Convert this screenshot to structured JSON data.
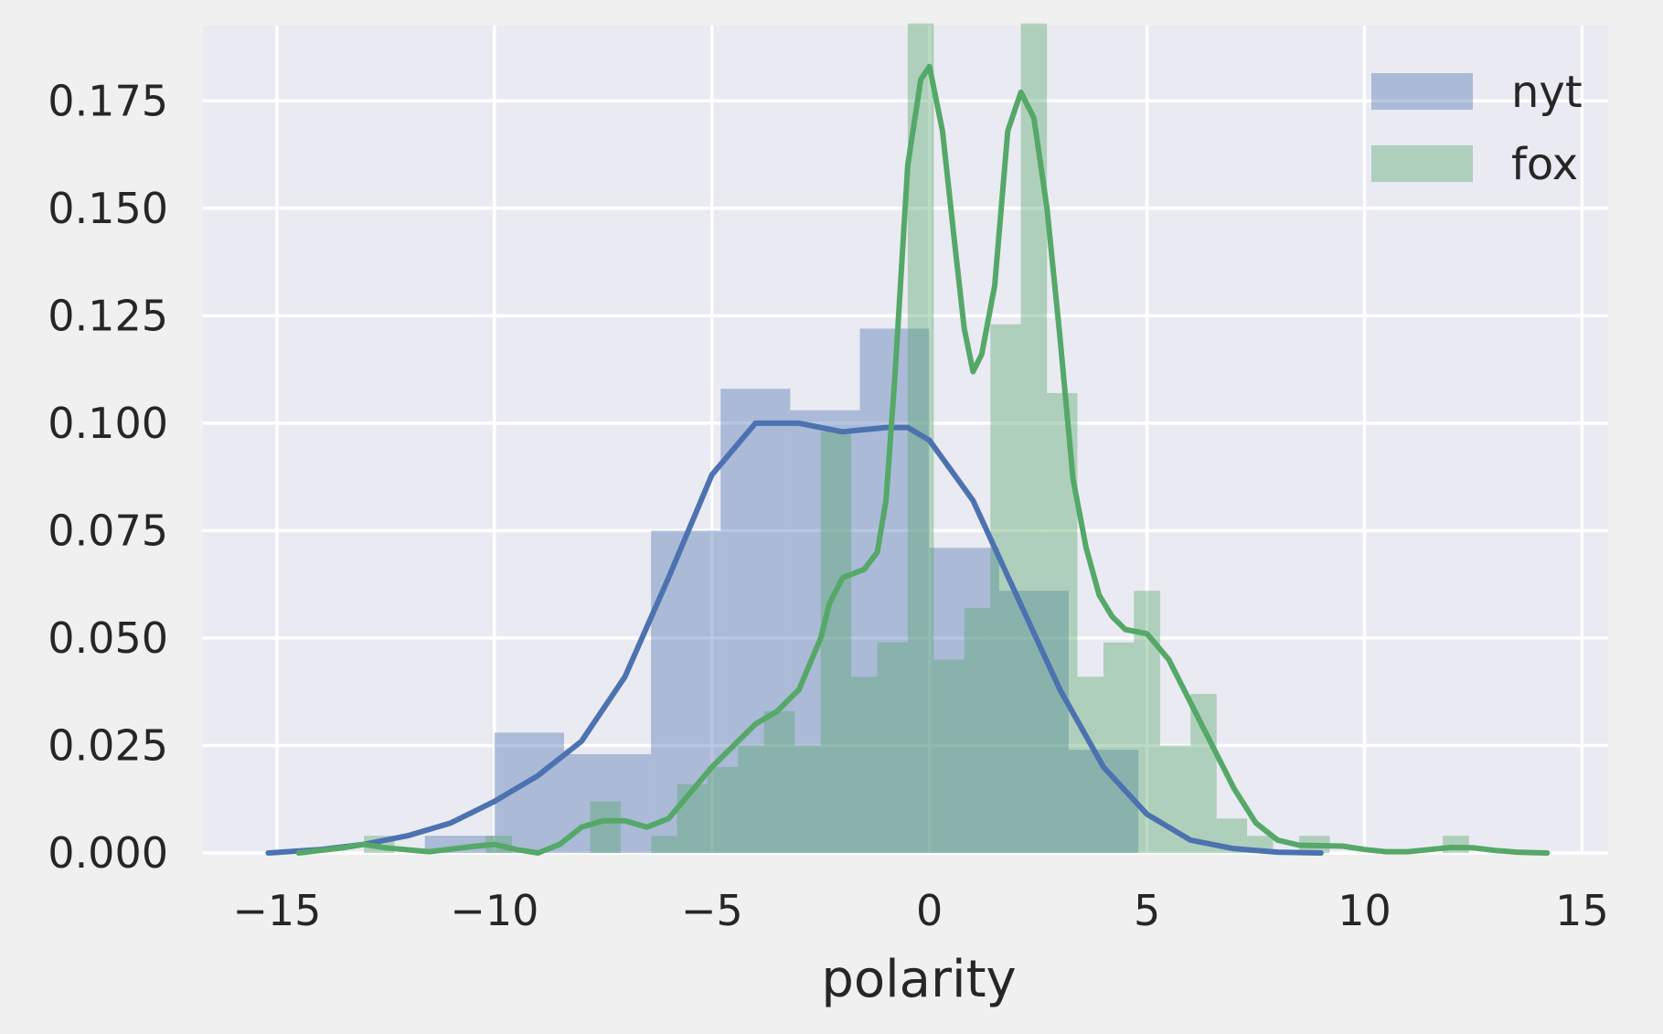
{
  "chart_data": {
    "type": "histogram-kde",
    "title": "",
    "xlabel": "polarity",
    "ylabel": "",
    "xlim": [
      -16.7,
      15.6
    ],
    "ylim": [
      0,
      0.1925
    ],
    "x_ticks": [
      -15,
      -10,
      -5,
      0,
      5,
      10,
      15
    ],
    "x_tick_labels": [
      "−15",
      "−10",
      "−5",
      "0",
      "5",
      "10",
      "15"
    ],
    "y_ticks": [
      0,
      0.025,
      0.05,
      0.075,
      0.1,
      0.125,
      0.15,
      0.175
    ],
    "y_tick_labels": [
      "0.000",
      "0.025",
      "0.050",
      "0.075",
      "0.100",
      "0.125",
      "0.150",
      "0.175"
    ],
    "grid": true,
    "legend_position": "top-right",
    "series": [
      {
        "name": "nyt",
        "color": "#4c72b0",
        "bins": [
          {
            "x0": -15.2,
            "x1": -13.6,
            "y": 0.0
          },
          {
            "x0": -11.6,
            "x1": -10.0,
            "y": 0.004
          },
          {
            "x0": -10.0,
            "x1": -8.4,
            "y": 0.028
          },
          {
            "x0": -8.4,
            "x1": -6.4,
            "y": 0.023
          },
          {
            "x0": -6.4,
            "x1": -4.8,
            "y": 0.075
          },
          {
            "x0": -4.8,
            "x1": -3.2,
            "y": 0.108
          },
          {
            "x0": -3.2,
            "x1": -1.6,
            "y": 0.103
          },
          {
            "x0": -1.6,
            "x1": 0.0,
            "y": 0.122
          },
          {
            "x0": 0.0,
            "x1": 1.6,
            "y": 0.071
          },
          {
            "x0": 1.6,
            "x1": 3.2,
            "y": 0.061
          },
          {
            "x0": 3.2,
            "x1": 4.8,
            "y": 0.024
          },
          {
            "x0": 8.0,
            "x1": 9.0,
            "y": 0.0
          }
        ],
        "kde": [
          [
            -15.2,
            0.0
          ],
          [
            -14,
            0.0008
          ],
          [
            -13,
            0.002
          ],
          [
            -12,
            0.004
          ],
          [
            -11,
            0.007
          ],
          [
            -10,
            0.012
          ],
          [
            -9,
            0.018
          ],
          [
            -8,
            0.026
          ],
          [
            -7,
            0.041
          ],
          [
            -6,
            0.064
          ],
          [
            -5,
            0.088
          ],
          [
            -4,
            0.1
          ],
          [
            -3,
            0.1
          ],
          [
            -2,
            0.098
          ],
          [
            -1,
            0.099
          ],
          [
            -0.5,
            0.099
          ],
          [
            0,
            0.096
          ],
          [
            1,
            0.082
          ],
          [
            2,
            0.06
          ],
          [
            3,
            0.038
          ],
          [
            4,
            0.02
          ],
          [
            5,
            0.009
          ],
          [
            6,
            0.003
          ],
          [
            7,
            0.001
          ],
          [
            8,
            0.0002
          ],
          [
            9,
            0.0
          ]
        ]
      },
      {
        "name": "fox",
        "color": "#55a868",
        "bins": [
          {
            "x0": -13.0,
            "x1": -12.3,
            "y": 0.004
          },
          {
            "x0": -10.2,
            "x1": -9.6,
            "y": 0.004
          },
          {
            "x0": -7.8,
            "x1": -7.1,
            "y": 0.012
          },
          {
            "x0": -6.4,
            "x1": -5.8,
            "y": 0.004
          },
          {
            "x0": -5.8,
            "x1": -5.1,
            "y": 0.016
          },
          {
            "x0": -5.1,
            "x1": -4.4,
            "y": 0.02
          },
          {
            "x0": -4.4,
            "x1": -3.8,
            "y": 0.025
          },
          {
            "x0": -3.8,
            "x1": -3.1,
            "y": 0.033
          },
          {
            "x0": -3.1,
            "x1": -2.5,
            "y": 0.025
          },
          {
            "x0": -2.5,
            "x1": -1.8,
            "y": 0.098
          },
          {
            "x0": -1.8,
            "x1": -1.2,
            "y": 0.041
          },
          {
            "x0": -1.2,
            "x1": -0.5,
            "y": 0.049
          },
          {
            "x0": -0.5,
            "x1": 0.1,
            "y": 0.193
          },
          {
            "x0": 0.1,
            "x1": 0.8,
            "y": 0.045
          },
          {
            "x0": 0.8,
            "x1": 1.4,
            "y": 0.057
          },
          {
            "x0": 1.4,
            "x1": 2.1,
            "y": 0.123
          },
          {
            "x0": 2.1,
            "x1": 2.7,
            "y": 0.193
          },
          {
            "x0": 2.7,
            "x1": 3.4,
            "y": 0.107
          },
          {
            "x0": 3.4,
            "x1": 4.0,
            "y": 0.041
          },
          {
            "x0": 4.0,
            "x1": 4.7,
            "y": 0.049
          },
          {
            "x0": 4.7,
            "x1": 5.3,
            "y": 0.061
          },
          {
            "x0": 5.3,
            "x1": 6.0,
            "y": 0.025
          },
          {
            "x0": 6.0,
            "x1": 6.6,
            "y": 0.037
          },
          {
            "x0": 6.6,
            "x1": 7.3,
            "y": 0.008
          },
          {
            "x0": 7.3,
            "x1": 7.9,
            "y": 0.004
          },
          {
            "x0": 8.5,
            "x1": 9.2,
            "y": 0.004
          },
          {
            "x0": 11.8,
            "x1": 12.4,
            "y": 0.004
          }
        ],
        "kde": [
          [
            -14.5,
            0.0
          ],
          [
            -13.5,
            0.0012
          ],
          [
            -13,
            0.002
          ],
          [
            -12.5,
            0.0012
          ],
          [
            -11.5,
            0.0003
          ],
          [
            -10.5,
            0.0015
          ],
          [
            -10,
            0.002
          ],
          [
            -9.5,
            0.0008
          ],
          [
            -9,
            0.0
          ],
          [
            -8.5,
            0.002
          ],
          [
            -8,
            0.006
          ],
          [
            -7.5,
            0.0075
          ],
          [
            -7,
            0.0075
          ],
          [
            -6.5,
            0.006
          ],
          [
            -6,
            0.008
          ],
          [
            -5.5,
            0.014
          ],
          [
            -5,
            0.02
          ],
          [
            -4.5,
            0.025
          ],
          [
            -4,
            0.03
          ],
          [
            -3.5,
            0.033
          ],
          [
            -3,
            0.038
          ],
          [
            -2.5,
            0.05
          ],
          [
            -2.3,
            0.058
          ],
          [
            -2,
            0.064
          ],
          [
            -1.5,
            0.066
          ],
          [
            -1.2,
            0.07
          ],
          [
            -1,
            0.082
          ],
          [
            -0.8,
            0.11
          ],
          [
            -0.5,
            0.16
          ],
          [
            -0.2,
            0.18
          ],
          [
            0,
            0.183
          ],
          [
            0.3,
            0.168
          ],
          [
            0.6,
            0.14
          ],
          [
            0.8,
            0.122
          ],
          [
            1.0,
            0.112
          ],
          [
            1.2,
            0.116
          ],
          [
            1.5,
            0.132
          ],
          [
            1.8,
            0.168
          ],
          [
            2.1,
            0.177
          ],
          [
            2.4,
            0.171
          ],
          [
            2.7,
            0.15
          ],
          [
            3.0,
            0.12
          ],
          [
            3.3,
            0.087
          ],
          [
            3.6,
            0.071
          ],
          [
            3.9,
            0.06
          ],
          [
            4.2,
            0.055
          ],
          [
            4.5,
            0.052
          ],
          [
            5.0,
            0.051
          ],
          [
            5.5,
            0.045
          ],
          [
            6.0,
            0.035
          ],
          [
            6.5,
            0.025
          ],
          [
            7.0,
            0.015
          ],
          [
            7.5,
            0.007
          ],
          [
            8.0,
            0.003
          ],
          [
            8.5,
            0.0018
          ],
          [
            9.0,
            0.0017
          ],
          [
            9.5,
            0.0016
          ],
          [
            10.0,
            0.0008
          ],
          [
            10.5,
            0.0003
          ],
          [
            11.0,
            0.0003
          ],
          [
            11.5,
            0.0008
          ],
          [
            12.0,
            0.0013
          ],
          [
            12.5,
            0.0012
          ],
          [
            13.0,
            0.0006
          ],
          [
            13.5,
            0.0002
          ],
          [
            14.2,
            0.0
          ]
        ]
      }
    ]
  }
}
